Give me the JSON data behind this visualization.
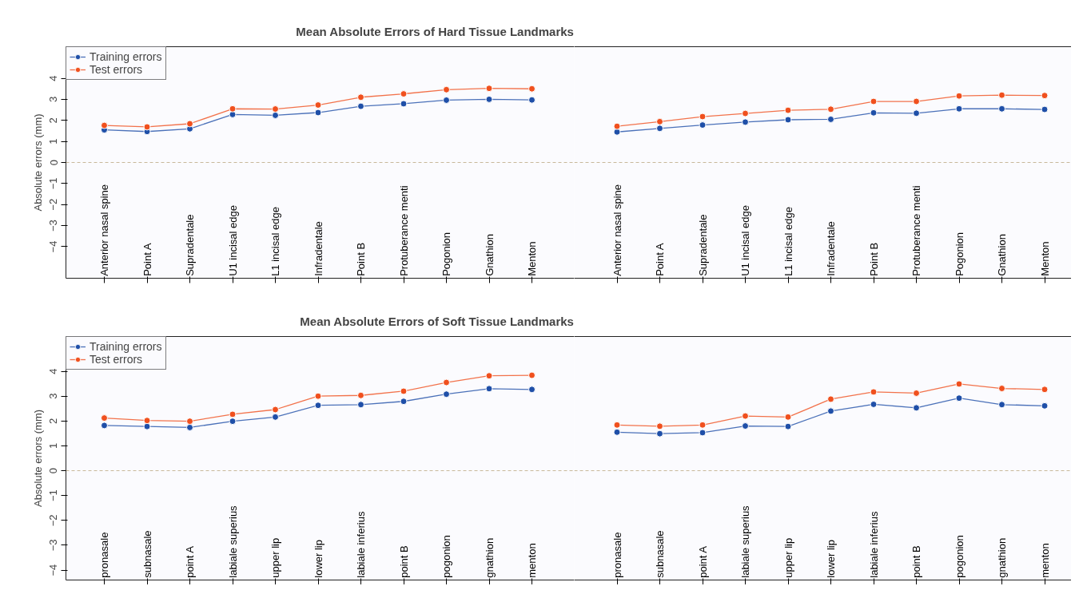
{
  "chart_data": [
    {
      "type": "line",
      "title": "Mean Absolute Errors of Hard Tissue Landmarks",
      "ylabel": "Absolute errors (mm)",
      "categories": [
        "Anterior nasal spine",
        "Point A",
        "Supradentale",
        "U1 incisal edge",
        "L1 incisal edge",
        "Infradentale",
        "Point B",
        "Protuberance menti",
        "Pogonion",
        "Gnathion",
        "Menton"
      ],
      "series": [
        {
          "name": "Training errors",
          "color": "#1f4fa8",
          "values": [
            1.55,
            1.47,
            1.6,
            2.28,
            2.24,
            2.37,
            2.67,
            2.79,
            2.96,
            3.0,
            2.97
          ]
        },
        {
          "name": "Test errors",
          "color": "#f0501e",
          "values": [
            1.76,
            1.69,
            1.84,
            2.55,
            2.54,
            2.73,
            3.1,
            3.26,
            3.46,
            3.52,
            3.5
          ]
        }
      ],
      "ylim": [
        -5.5,
        5.5
      ],
      "yticks": [
        -4,
        -3,
        -2,
        -1,
        0,
        1,
        2,
        3,
        4
      ],
      "ref_lines": [
        {
          "axis": "y",
          "value": 0,
          "color": "#c8b89a",
          "line_style": "dashed"
        }
      ],
      "legend": "top left",
      "marker": "circle"
    },
    {
      "type": "line",
      "categories": [
        "Anterior nasal spine",
        "Point A",
        "Supradentale",
        "U1 incisal edge",
        "L1 incisal edge",
        "Infradentale",
        "Point B",
        "Protuberance menti",
        "Pogonion",
        "Gnathion",
        "Menton"
      ],
      "series": [
        {
          "color": "#1f4fa8",
          "values": [
            1.45,
            1.62,
            1.78,
            1.92,
            2.03,
            2.05,
            2.36,
            2.34,
            2.55,
            2.55,
            2.52
          ]
        },
        {
          "color": "#f0501e",
          "values": [
            1.72,
            1.94,
            2.18,
            2.33,
            2.48,
            2.53,
            2.9,
            2.9,
            3.16,
            3.2,
            3.18
          ]
        }
      ],
      "ylim": [
        -5.5,
        5.5
      ],
      "tick_labels": "x",
      "ref_lines": [
        {
          "axis": "y",
          "value": 0,
          "color": "#c8b89a",
          "line_style": "dashed"
        }
      ],
      "marker": "circle"
    },
    {
      "type": "line",
      "title": "Mean Absolute Errors of Soft Tissue Landmarks",
      "ylabel": "Absolute errors (mm)",
      "categories": [
        "pronasale",
        "subnasale",
        "point A",
        "labiale superius",
        "upper lip",
        "lower lip",
        "labiale inferius",
        "point B",
        "pogonion",
        "gnathion",
        "menton"
      ],
      "series": [
        {
          "name": "Training errors",
          "color": "#1f4fa8",
          "values": [
            1.82,
            1.78,
            1.74,
            1.99,
            2.16,
            2.63,
            2.66,
            2.79,
            3.08,
            3.3,
            3.27
          ]
        },
        {
          "name": "Test errors",
          "color": "#f0501e",
          "values": [
            2.12,
            2.02,
            1.99,
            2.27,
            2.46,
            3.0,
            3.03,
            3.2,
            3.55,
            3.82,
            3.84
          ]
        }
      ],
      "ylim": [
        -4.4,
        5.4
      ],
      "yticks": [
        -4,
        -3,
        -2,
        -1,
        0,
        1,
        2,
        3,
        4
      ],
      "ref_lines": [
        {
          "axis": "y",
          "value": 0,
          "color": "#c8b89a",
          "line_style": "dashed"
        }
      ],
      "legend": "top left",
      "marker": "circle"
    },
    {
      "type": "line",
      "categories": [
        "pronasale",
        "subnasale",
        "point A",
        "labiale superius",
        "upper lip",
        "lower lip",
        "labiale inferius",
        "point B",
        "pogonion",
        "gnathion",
        "menton"
      ],
      "series": [
        {
          "color": "#1f4fa8",
          "values": [
            1.55,
            1.49,
            1.53,
            1.8,
            1.78,
            2.4,
            2.67,
            2.53,
            2.92,
            2.66,
            2.61
          ]
        },
        {
          "color": "#f0501e",
          "values": [
            1.84,
            1.79,
            1.84,
            2.2,
            2.16,
            2.88,
            3.17,
            3.12,
            3.49,
            3.31,
            3.27
          ]
        }
      ],
      "ylim": [
        -4.4,
        5.4
      ],
      "tick_labels": "x",
      "ref_lines": [
        {
          "axis": "y",
          "value": 0,
          "color": "#c8b89a",
          "line_style": "dashed"
        }
      ],
      "marker": "circle"
    }
  ]
}
